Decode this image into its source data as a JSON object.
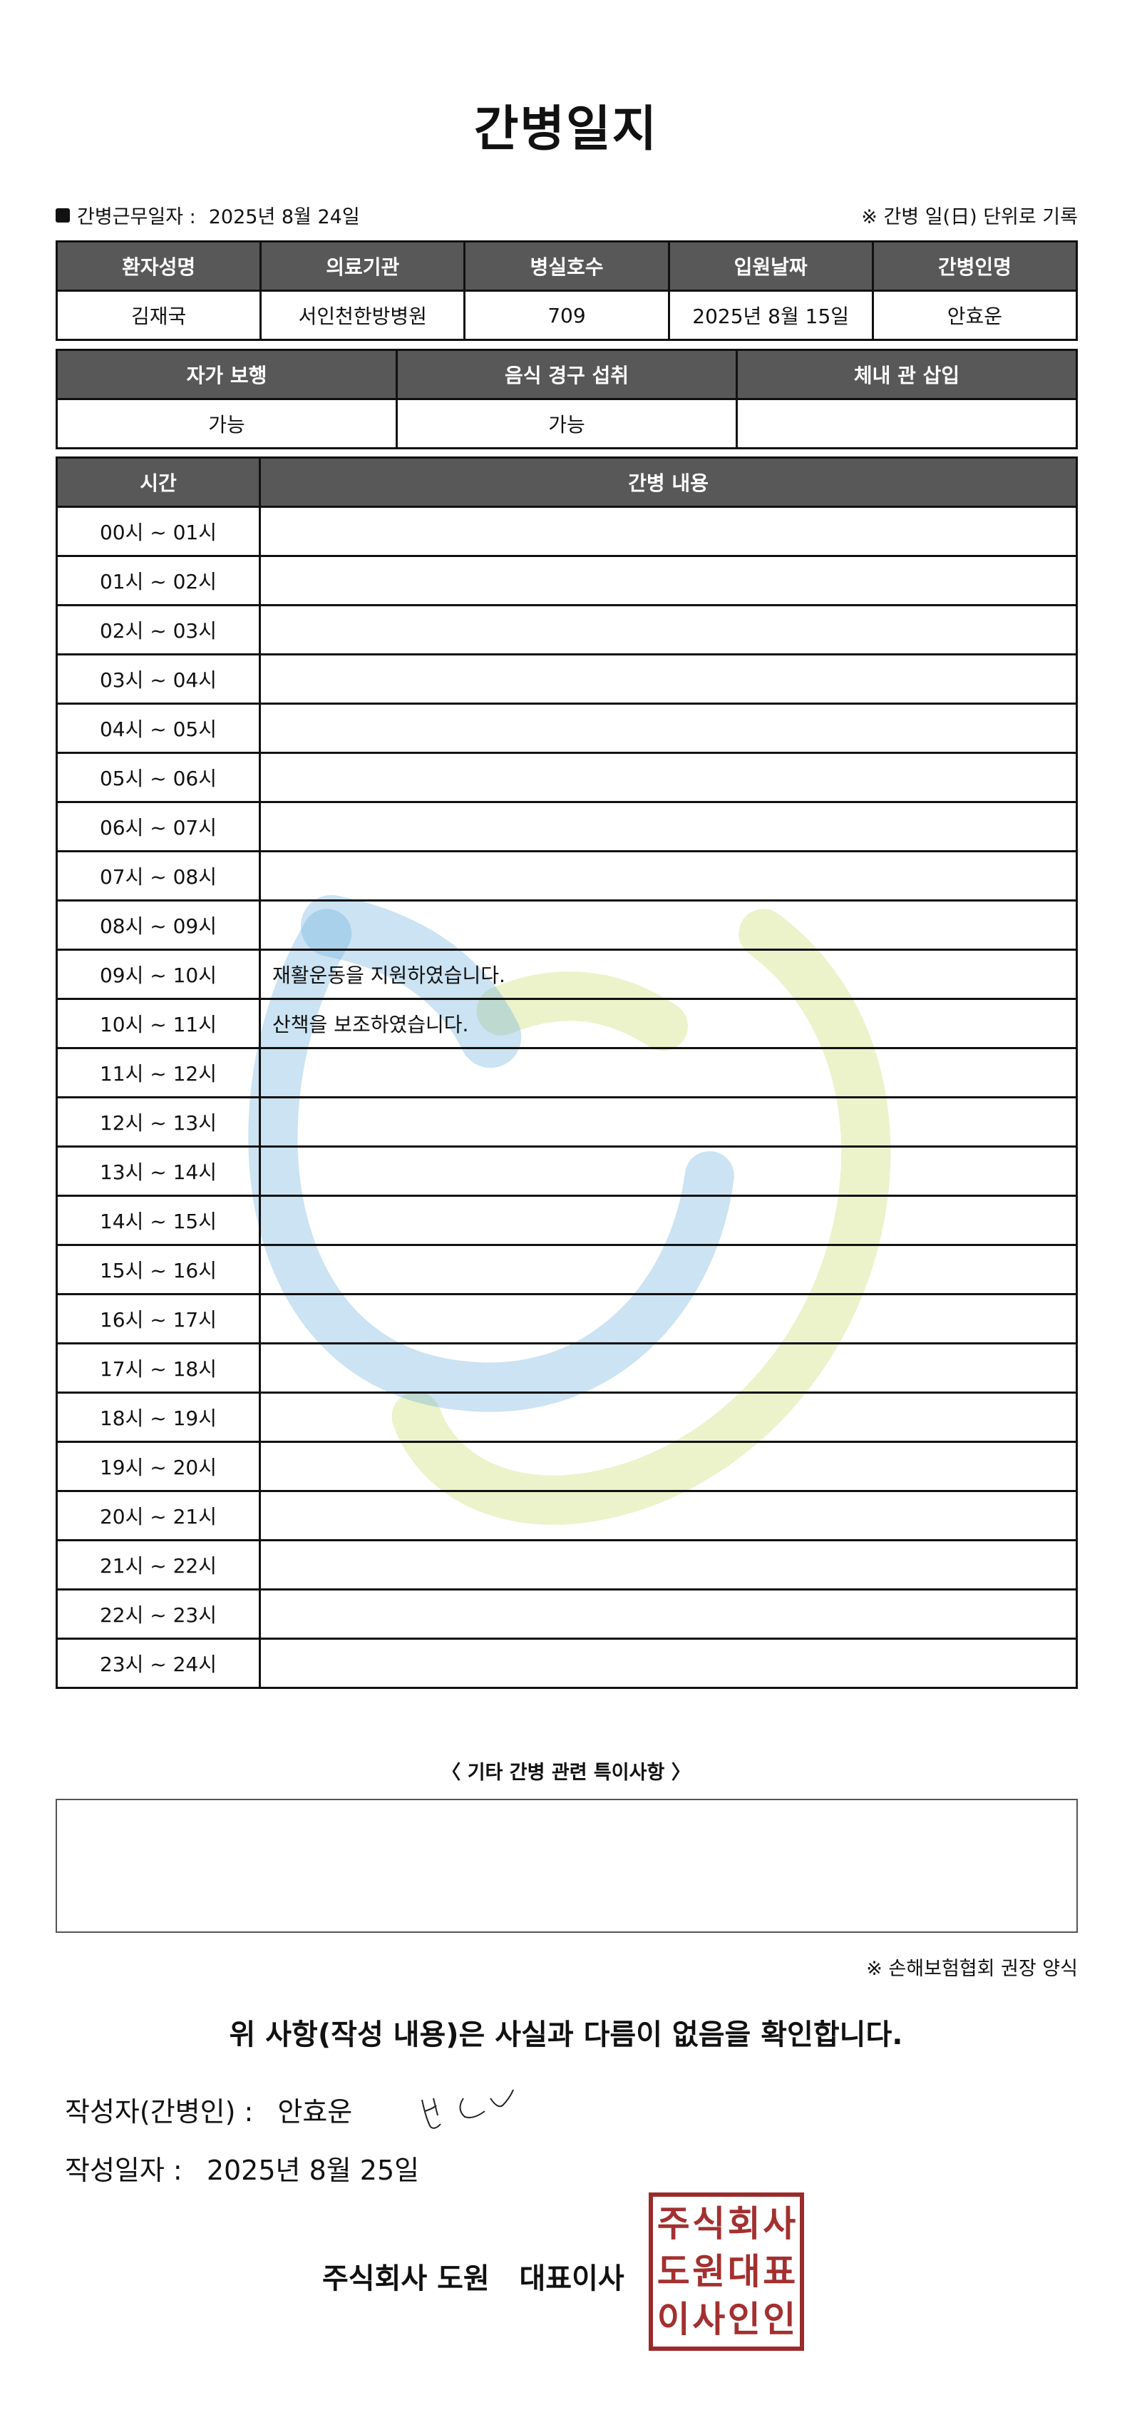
{
  "title": "간병일지",
  "work_date_label": "간병근무일자 :",
  "work_date": "2025년 8월 24일",
  "record_note": "※ 간병 일(日) 단위로 기록",
  "patient_table": {
    "headers": [
      "환자성명",
      "의료기관",
      "병실호수",
      "입원날짜",
      "간병인명"
    ],
    "values": [
      "김재국",
      "서인천한방병원",
      "709",
      "2025년 8월 15일",
      "안효운"
    ]
  },
  "status_table": {
    "headers": [
      "자가 보행",
      "음식 경구 섭취",
      "체내 관 삽입"
    ],
    "values": [
      "가능",
      "가능",
      ""
    ]
  },
  "care_log": {
    "headers": [
      "시간",
      "간병 내용"
    ],
    "rows": [
      {
        "time": "00시 ~ 01시",
        "content": ""
      },
      {
        "time": "01시 ~ 02시",
        "content": ""
      },
      {
        "time": "02시 ~ 03시",
        "content": ""
      },
      {
        "time": "03시 ~ 04시",
        "content": ""
      },
      {
        "time": "04시 ~ 05시",
        "content": ""
      },
      {
        "time": "05시 ~ 06시",
        "content": ""
      },
      {
        "time": "06시 ~ 07시",
        "content": ""
      },
      {
        "time": "07시 ~ 08시",
        "content": ""
      },
      {
        "time": "08시 ~ 09시",
        "content": ""
      },
      {
        "time": "09시 ~ 10시",
        "content": "재활운동을 지원하였습니다."
      },
      {
        "time": "10시 ~ 11시",
        "content": "산책을 보조하였습니다."
      },
      {
        "time": "11시 ~ 12시",
        "content": ""
      },
      {
        "time": "12시 ~ 13시",
        "content": ""
      },
      {
        "time": "13시 ~ 14시",
        "content": ""
      },
      {
        "time": "14시 ~ 15시",
        "content": ""
      },
      {
        "time": "15시 ~ 16시",
        "content": ""
      },
      {
        "time": "16시 ~ 17시",
        "content": ""
      },
      {
        "time": "17시 ~ 18시",
        "content": ""
      },
      {
        "time": "18시 ~ 19시",
        "content": ""
      },
      {
        "time": "19시 ~ 20시",
        "content": ""
      },
      {
        "time": "20시 ~ 21시",
        "content": ""
      },
      {
        "time": "21시 ~ 22시",
        "content": ""
      },
      {
        "time": "22시 ~ 23시",
        "content": ""
      },
      {
        "time": "23시 ~ 24시",
        "content": ""
      }
    ]
  },
  "notes_title": "〈 기타 간병 관련 특이사항 〉",
  "notes": "",
  "form_note": "※ 손해보험협회 권장 양식",
  "confirmation": "위 사항(작성 내용)은 사실과 다름이 없음을 확인합니다.",
  "writer_label": "작성자(간병인) :",
  "writer_name": "안효운",
  "written_date_label": "작성일자 :",
  "written_date": "2025년 8월 25일",
  "company": "주식회사 도원   대표이사",
  "seal_text": "주식회사도원대표이사인인",
  "colors": {
    "header_bg": "#585858",
    "seal": "#a33030",
    "watermark_blue": "#6aaede",
    "watermark_green": "#d4e38a"
  }
}
